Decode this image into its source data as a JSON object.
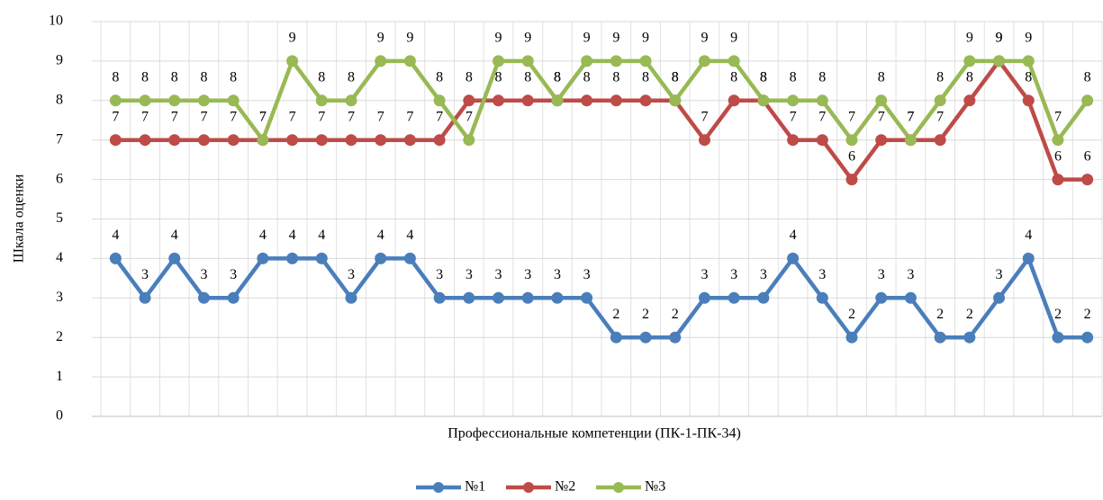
{
  "chart_data": {
    "type": "line",
    "x_label": "Профессиональные компетенции (ПК-1-ПК-34)",
    "y_label": "Шкала оценки",
    "categories": [
      null,
      null,
      null,
      null,
      null,
      null,
      null,
      null,
      null,
      null,
      null,
      null,
      null,
      null,
      null,
      null,
      null,
      null,
      null,
      null,
      null,
      null,
      null,
      null,
      null,
      null,
      null,
      null,
      null,
      null,
      null,
      null,
      null,
      null
    ],
    "series": [
      {
        "name": "№1",
        "color": "#4a7ebb",
        "values": [
          4,
          3,
          4,
          3,
          3,
          4,
          4,
          4,
          3,
          4,
          4,
          3,
          3,
          3,
          3,
          3,
          3,
          2,
          2,
          2,
          3,
          3,
          3,
          4,
          3,
          2,
          3,
          3,
          2,
          2,
          3,
          4,
          2,
          2
        ]
      },
      {
        "name": "№2",
        "color": "#be4b48",
        "values": [
          7,
          7,
          7,
          7,
          7,
          7,
          7,
          7,
          7,
          7,
          7,
          7,
          8,
          8,
          8,
          8,
          8,
          8,
          8,
          8,
          7,
          8,
          8,
          7,
          7,
          6,
          7,
          7,
          7,
          8,
          9,
          8,
          6,
          6
        ]
      },
      {
        "name": "№3",
        "color": "#98b954",
        "values": [
          8,
          8,
          8,
          8,
          8,
          7,
          9,
          8,
          8,
          9,
          9,
          8,
          7,
          9,
          9,
          8,
          9,
          9,
          9,
          8,
          9,
          9,
          8,
          8,
          8,
          7,
          8,
          7,
          8,
          9,
          9,
          9,
          7,
          8
        ]
      }
    ],
    "ylim": [
      0,
      10
    ],
    "yticks": [
      0,
      1,
      2,
      3,
      4,
      5,
      6,
      7,
      8,
      9,
      10
    ],
    "grid": true,
    "legend": "bottom"
  }
}
